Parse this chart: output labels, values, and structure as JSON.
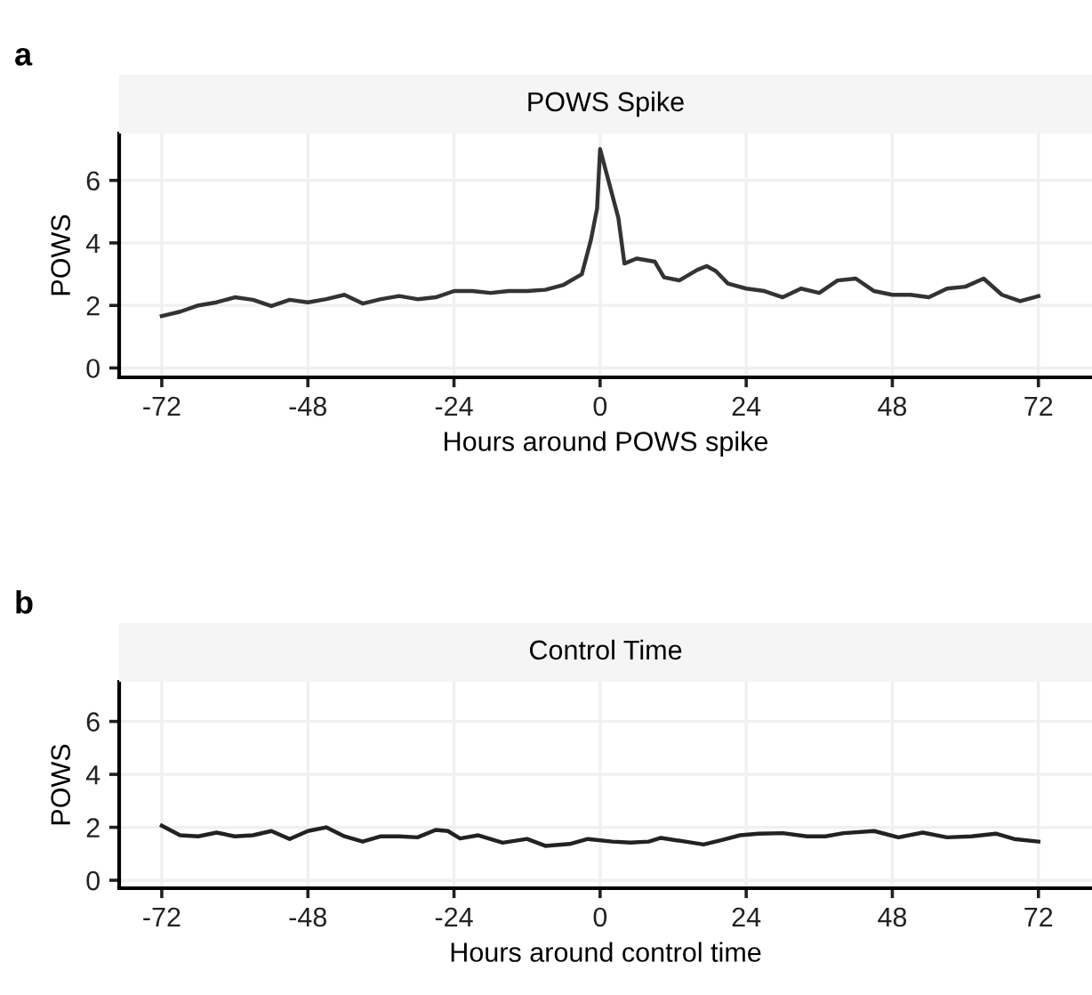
{
  "chart_data": [
    {
      "type": "line",
      "title": "POWS Spike",
      "xlabel": "Hours around POWS spike",
      "ylabel": "POWS",
      "annotations": [
        "a"
      ],
      "series": [
        {
          "color": "#333333",
          "x": [
            -72,
            -69,
            -66,
            -63,
            -60,
            -57,
            -54,
            -51,
            -48,
            -45,
            -42,
            -39,
            -36,
            -33,
            -30,
            -27,
            -24,
            -21,
            -18,
            -15,
            -12,
            -9,
            -6,
            -3,
            -1.5,
            -0.5,
            0,
            3,
            4,
            6,
            9,
            10.5,
            13,
            16,
            17.5,
            19,
            21,
            24,
            27,
            30,
            33,
            36,
            39,
            42,
            45,
            48,
            51,
            54,
            57,
            60,
            63,
            66,
            69,
            72
          ],
          "values": [
            1.66,
            1.8,
            2.0,
            2.1,
            2.26,
            2.18,
            1.98,
            2.18,
            2.1,
            2.2,
            2.34,
            2.06,
            2.2,
            2.3,
            2.2,
            2.26,
            2.46,
            2.46,
            2.4,
            2.46,
            2.46,
            2.5,
            2.66,
            3.0,
            4.1,
            5.1,
            7.0,
            4.8,
            3.34,
            3.5,
            3.4,
            2.9,
            2.8,
            3.14,
            3.26,
            3.1,
            2.7,
            2.54,
            2.46,
            2.26,
            2.54,
            2.4,
            2.8,
            2.86,
            2.46,
            2.34,
            2.34,
            2.26,
            2.54,
            2.6,
            2.86,
            2.34,
            2.14,
            2.3
          ]
        }
      ],
      "xlim": [
        -79,
        80.8
      ],
      "ylim": [
        -0.3,
        7.5
      ],
      "xticks": [
        -72,
        -48,
        -24,
        0,
        24,
        48,
        72
      ],
      "yticks": [
        0,
        2,
        4,
        6
      ],
      "grid": true,
      "line_style": "solid",
      "marker": "none"
    },
    {
      "type": "line",
      "title": "Control Time",
      "xlabel": "Hours around control time",
      "ylabel": "POWS",
      "annotations": [
        "b"
      ],
      "series": [
        {
          "color": "#222222",
          "x": [
            -72,
            -69,
            -66,
            -63,
            -60,
            -57,
            -54,
            -51,
            -48,
            -45,
            -42,
            -39,
            -36,
            -33,
            -30,
            -27,
            -25,
            -23,
            -20,
            -16,
            -12,
            -9,
            -5,
            -2,
            2,
            5,
            8,
            10,
            14,
            17,
            20,
            23,
            26,
            30,
            34,
            37,
            40,
            45,
            49,
            53,
            57,
            61,
            65,
            68,
            72
          ],
          "values": [
            2.06,
            1.7,
            1.66,
            1.8,
            1.66,
            1.7,
            1.86,
            1.56,
            1.86,
            2.0,
            1.66,
            1.46,
            1.66,
            1.66,
            1.62,
            1.9,
            1.86,
            1.58,
            1.7,
            1.42,
            1.56,
            1.3,
            1.37,
            1.56,
            1.46,
            1.42,
            1.46,
            1.6,
            1.46,
            1.35,
            1.52,
            1.7,
            1.76,
            1.78,
            1.66,
            1.66,
            1.78,
            1.86,
            1.62,
            1.8,
            1.62,
            1.66,
            1.76,
            1.56,
            1.46
          ]
        }
      ],
      "xlim": [
        -79,
        80.8
      ],
      "ylim": [
        -0.3,
        7.5
      ],
      "xticks": [
        -72,
        -48,
        -24,
        0,
        24,
        48,
        72
      ],
      "yticks": [
        0,
        2,
        4,
        6
      ],
      "grid": true,
      "line_style": "solid",
      "marker": "none"
    }
  ]
}
